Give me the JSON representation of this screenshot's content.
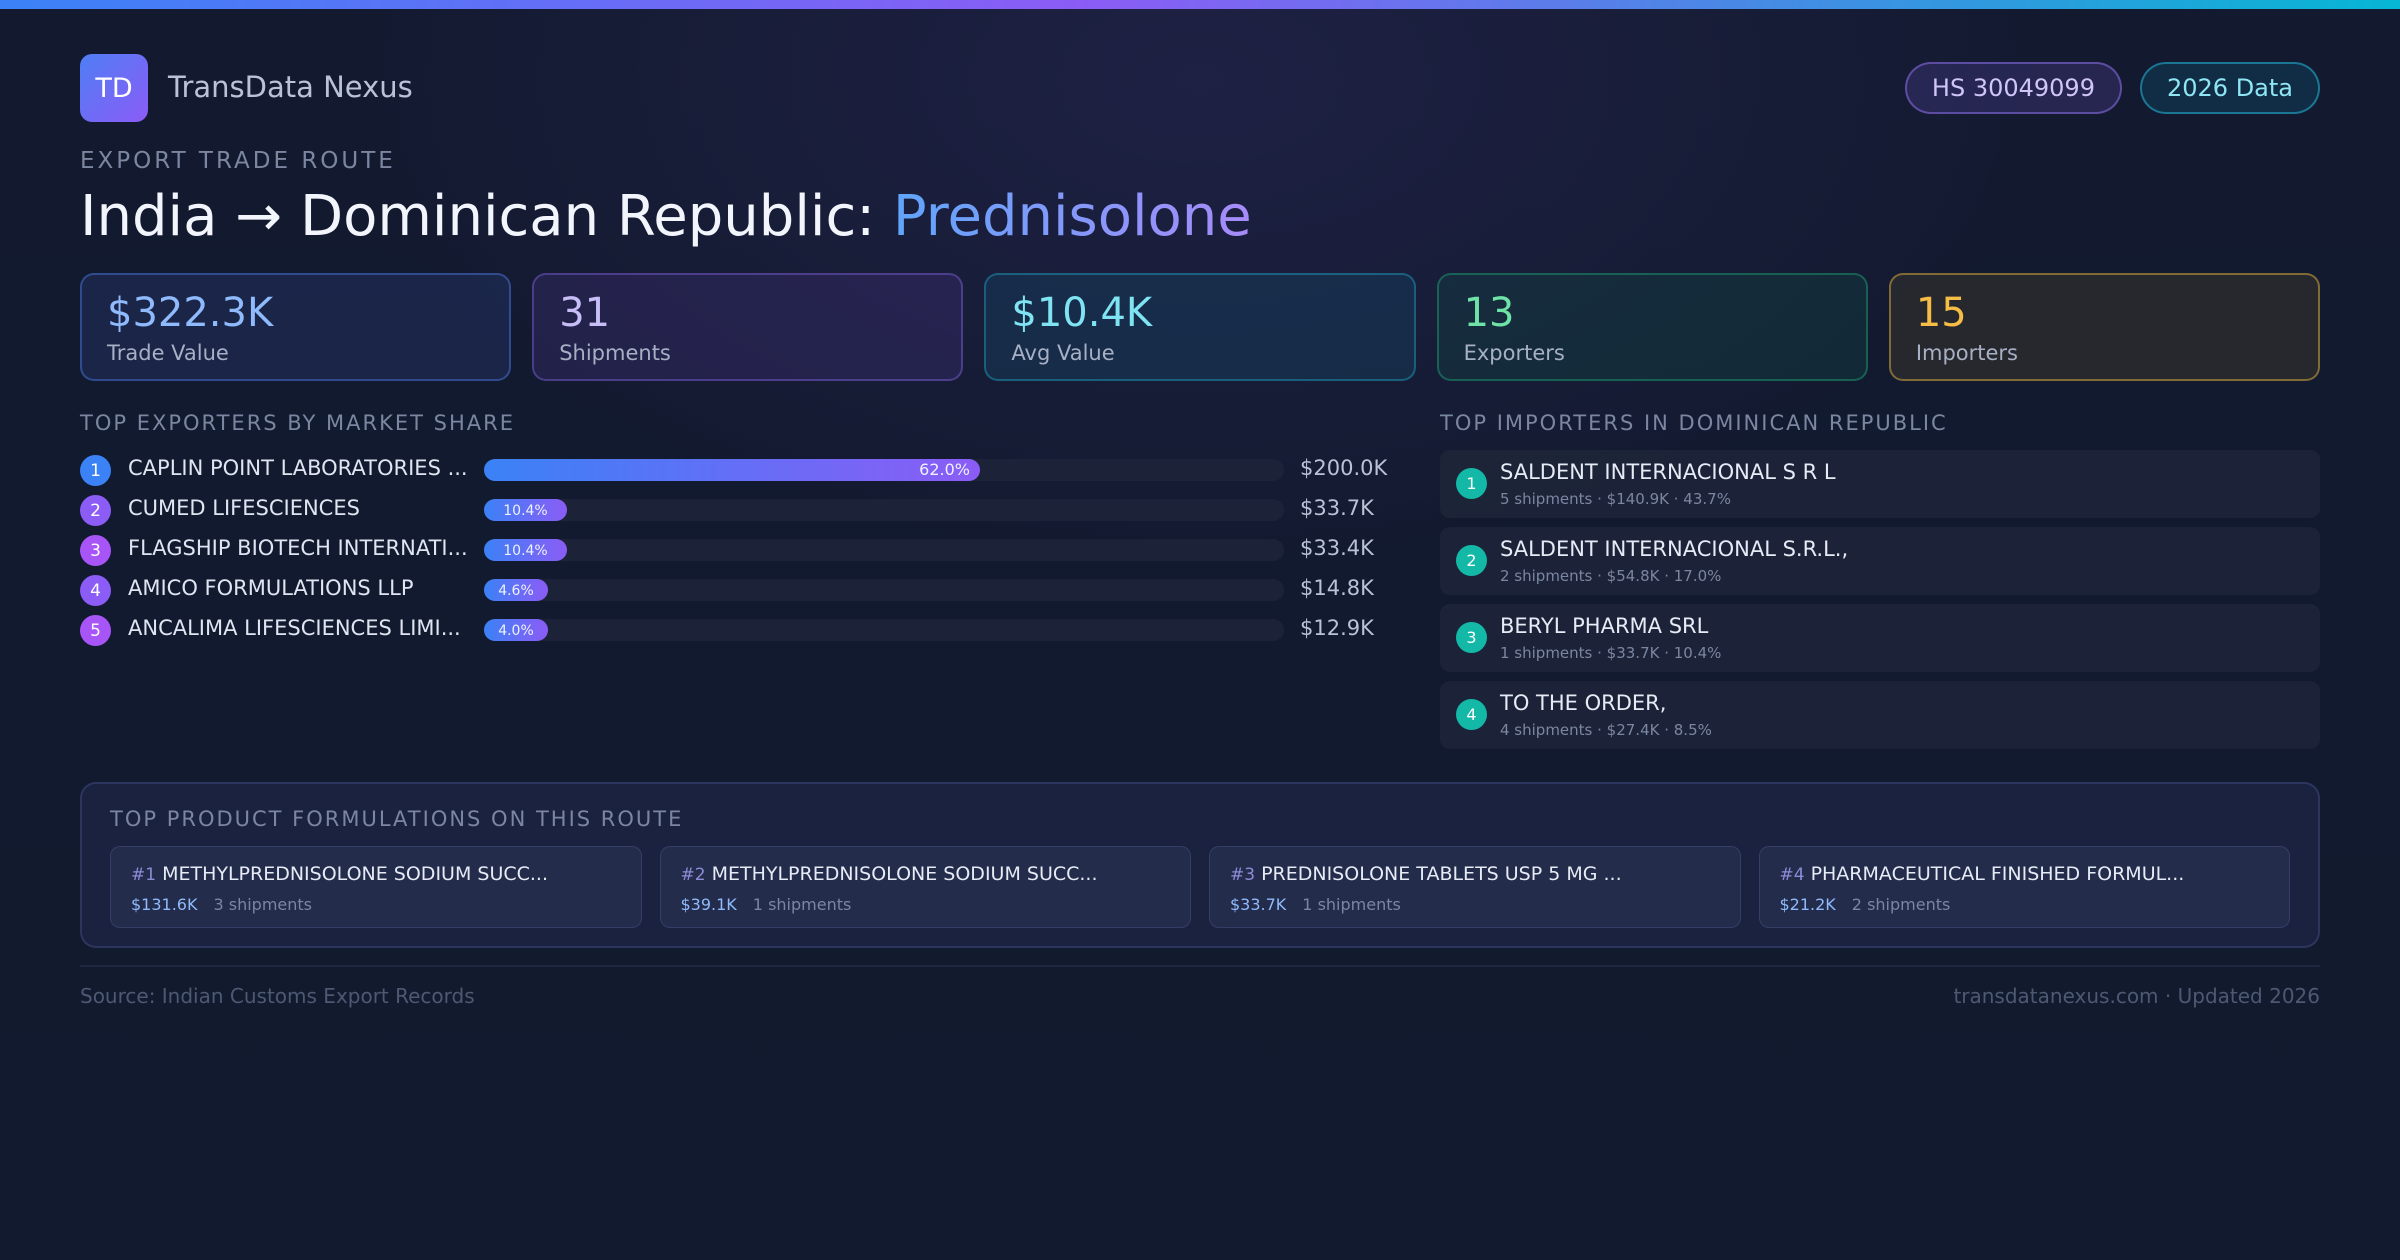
{
  "brand": {
    "logo": "TD",
    "name": "TransData Nexus"
  },
  "badges": {
    "hs": "HS 30049099",
    "year": "2026 Data"
  },
  "eyebrow": "EXPORT TRADE ROUTE",
  "title": {
    "route": "India → Dominican Republic: ",
    "product": "Prednisolone"
  },
  "stats": [
    {
      "value": "$322.3K",
      "label": "Trade Value"
    },
    {
      "value": "31",
      "label": "Shipments"
    },
    {
      "value": "$10.4K",
      "label": "Avg Value"
    },
    {
      "value": "13",
      "label": "Exporters"
    },
    {
      "value": "15",
      "label": "Importers"
    }
  ],
  "exporters": {
    "title": "TOP EXPORTERS BY MARKET SHARE",
    "items": [
      {
        "rank": "1",
        "name": "CAPLIN POINT LABORATORIES ...",
        "pct_label": "62.0%",
        "share": 62.0,
        "amount": "$200.0K",
        "color": "#3b82f6"
      },
      {
        "rank": "2",
        "name": "CUMED LIFESCIENCES",
        "pct_label": "10.4%",
        "share": 10.4,
        "amount": "$33.7K",
        "color": "#8b5cf6"
      },
      {
        "rank": "3",
        "name": "FLAGSHIP BIOTECH INTERNATI...",
        "pct_label": "10.4%",
        "share": 10.4,
        "amount": "$33.4K",
        "color": "#a855f7"
      },
      {
        "rank": "4",
        "name": "AMICO FORMULATIONS LLP",
        "pct_label": "4.6%",
        "share": 4.6,
        "amount": "$14.8K",
        "color": "#8b5cf6"
      },
      {
        "rank": "5",
        "name": "ANCALIMA LIFESCIENCES LIMI...",
        "pct_label": "4.0%",
        "share": 4.0,
        "amount": "$12.9K",
        "color": "#a855f7"
      }
    ]
  },
  "importers": {
    "title": "TOP IMPORTERS IN DOMINICAN REPUBLIC",
    "items": [
      {
        "rank": "1",
        "name": "SALDENT INTERNACIONAL S R L",
        "meta": "5 shipments · $140.9K · 43.7%"
      },
      {
        "rank": "2",
        "name": "SALDENT INTERNACIONAL S.R.L.,",
        "meta": "2 shipments · $54.8K · 17.0%"
      },
      {
        "rank": "3",
        "name": "BERYL PHARMA SRL",
        "meta": "1 shipments · $33.7K · 10.4%"
      },
      {
        "rank": "4",
        "name": "TO THE ORDER,",
        "meta": "4 shipments · $27.4K · 8.5%"
      }
    ]
  },
  "formulations": {
    "title": "TOP PRODUCT FORMULATIONS ON THIS ROUTE",
    "items": [
      {
        "num": "#1",
        "name": "METHYLPREDNISOLONE SODIUM SUCC...",
        "amount": "$131.6K",
        "shipments": "3 shipments"
      },
      {
        "num": "#2",
        "name": "METHYLPREDNISOLONE SODIUM SUCC...",
        "amount": "$39.1K",
        "shipments": "1 shipments"
      },
      {
        "num": "#3",
        "name": "PREDNISOLONE TABLETS USP 5 MG ...",
        "amount": "$33.7K",
        "shipments": "1 shipments"
      },
      {
        "num": "#4",
        "name": "PHARMACEUTICAL FINISHED FORMUL...",
        "amount": "$21.2K",
        "shipments": "2 shipments"
      }
    ]
  },
  "footer": {
    "source": "Source: Indian Customs Export Records",
    "site": "transdatanexus.com · Updated 2026"
  }
}
